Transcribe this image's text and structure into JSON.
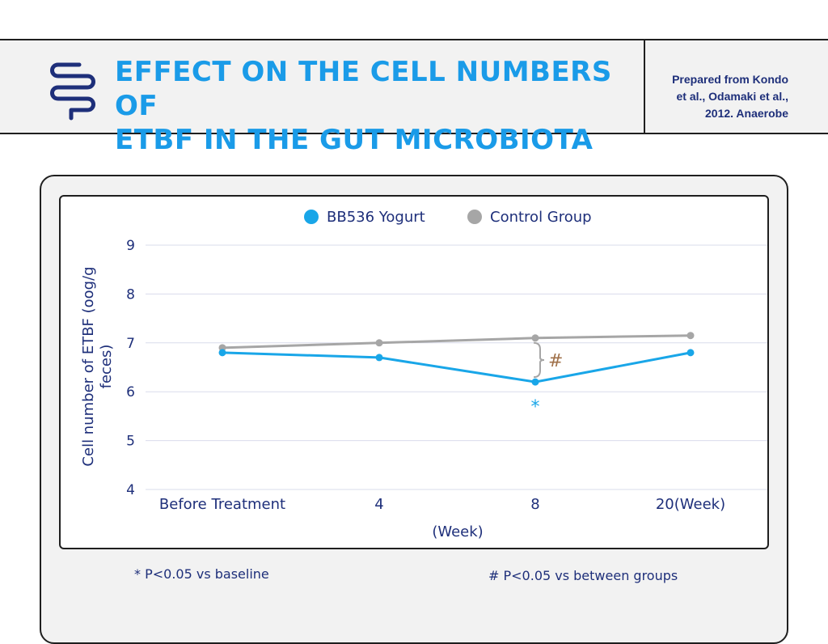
{
  "header": {
    "title_lines": [
      "EFFECT ON THE CELL NUMBERS OF",
      "ETBF IN THE GUT MICROBIOTA"
    ],
    "source_lines": [
      "Prepared from Kondo",
      "et al., Odamaki et al.,",
      "2012. Anaerobe"
    ],
    "icon": "intestine-icon"
  },
  "colors": {
    "title": "#1a9be8",
    "text": "#1e2f7a",
    "series_yogurt": "#19a6e8",
    "series_control": "#a6a6a6",
    "annotation_hash": "#a0714a",
    "annotation_star": "#19a6e8"
  },
  "chart_data": {
    "type": "line",
    "title": "",
    "categories": [
      "Before Treatment",
      "4",
      "8",
      "20(Week)"
    ],
    "series": [
      {
        "name": "BB536 Yogurt",
        "values": [
          6.8,
          6.7,
          6.2,
          6.8
        ]
      },
      {
        "name": "Control Group",
        "values": [
          6.9,
          7.0,
          7.1,
          7.15
        ]
      }
    ],
    "xlabel": "(Week)",
    "ylabel": "Cell number of ETBF (oog/g feces)",
    "ylabel_lines": [
      "Cell number of ETBF (oog/g",
      "feces)"
    ],
    "ylim": [
      4,
      9
    ],
    "yticks": [
      4,
      5,
      6,
      7,
      8,
      9
    ],
    "grid": true,
    "legend_position": "top-center",
    "annotations": [
      {
        "text": "#",
        "category": "8",
        "meaning": "between groups"
      },
      {
        "text": "*",
        "category": "8",
        "meaning": "vs baseline"
      }
    ]
  },
  "footnotes": {
    "star": "* P<0.05 vs baseline",
    "hash": "# P<0.05 vs between groups"
  }
}
